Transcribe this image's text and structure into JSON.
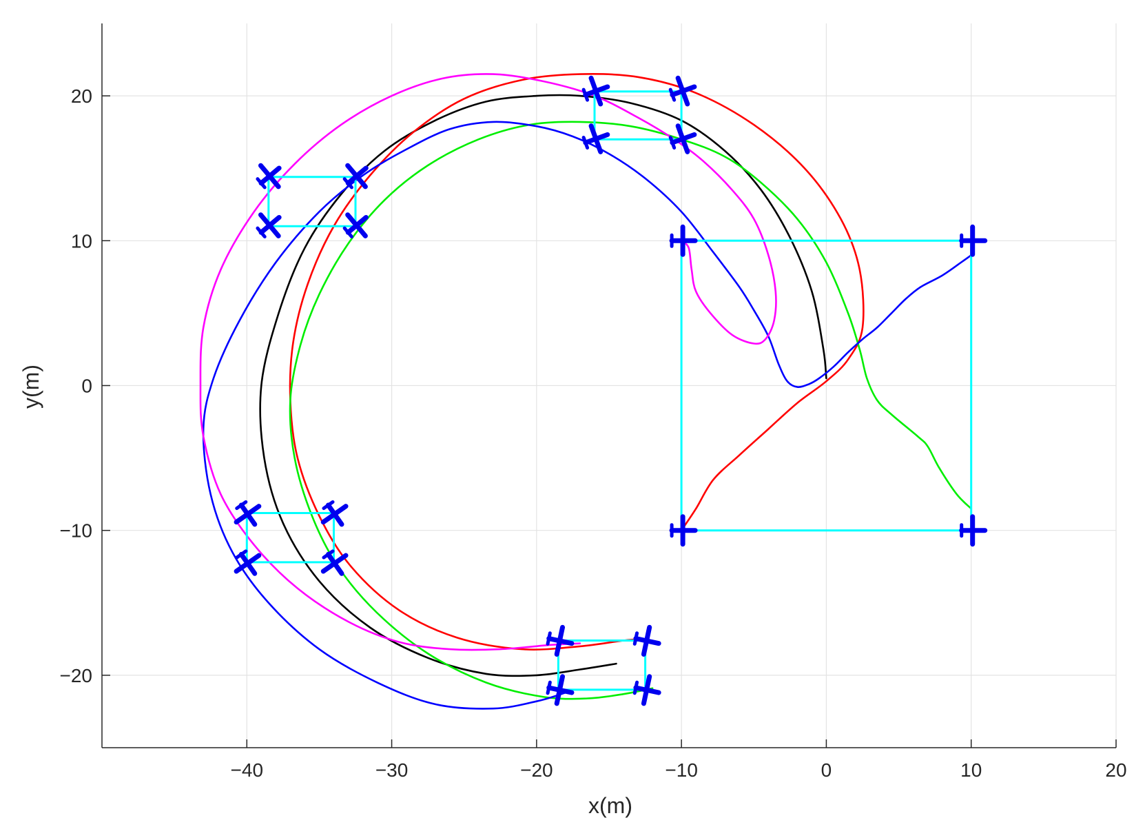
{
  "chart_data": {
    "type": "line",
    "title": "",
    "xlabel": "x(m)",
    "ylabel": "y(m)",
    "xlim": [
      -50,
      20
    ],
    "ylim": [
      -25,
      25
    ],
    "xticks": [
      -40,
      -30,
      -20,
      -10,
      0,
      10,
      20
    ],
    "yticks": [
      -20,
      -10,
      0,
      10,
      20
    ],
    "grid": true,
    "legend": "none",
    "colors": {
      "red": "#ff0000",
      "green": "#00ee00",
      "blue": "#0000ff",
      "magenta": "#ff00ff",
      "black": "#000000",
      "formation": "#00ffff",
      "aircraft": "#0000ee"
    },
    "series": [
      {
        "color": "black",
        "points": [
          [
            0,
            0.5
          ],
          [
            -0.2,
            2.5
          ],
          [
            -1,
            6.5
          ],
          [
            -2.5,
            10.2
          ],
          [
            -4.5,
            13.5
          ],
          [
            -7,
            16.2
          ],
          [
            -10,
            18.3
          ],
          [
            -13.5,
            19.5
          ],
          [
            -17,
            20
          ],
          [
            -20,
            20
          ],
          [
            -23.5,
            19.6
          ],
          [
            -27,
            18.3
          ],
          [
            -30.5,
            16.2
          ],
          [
            -33.5,
            13.2
          ],
          [
            -36,
            9.5
          ],
          [
            -37.8,
            5
          ],
          [
            -39,
            0
          ],
          [
            -38.8,
            -5
          ],
          [
            -37.5,
            -9.5
          ],
          [
            -35,
            -13.5
          ],
          [
            -31.5,
            -16.7
          ],
          [
            -27.5,
            -18.8
          ],
          [
            -23.5,
            -19.9
          ],
          [
            -20,
            -20
          ],
          [
            -17,
            -19.6
          ],
          [
            -14.5,
            -19.2
          ]
        ]
      },
      {
        "color": "red",
        "points": [
          [
            -10,
            -10
          ],
          [
            -9,
            -8.5
          ],
          [
            -7.8,
            -6.5
          ],
          [
            -6,
            -4.8
          ],
          [
            -4,
            -3
          ],
          [
            -2,
            -1.2
          ],
          [
            0,
            0.3
          ],
          [
            1.5,
            1.8
          ],
          [
            2.5,
            4
          ],
          [
            2.3,
            8
          ],
          [
            1,
            11.5
          ],
          [
            -1.5,
            15
          ],
          [
            -5,
            18
          ],
          [
            -9,
            20.2
          ],
          [
            -13,
            21.3
          ],
          [
            -17,
            21.5
          ],
          [
            -21,
            21.1
          ],
          [
            -25,
            19.8
          ],
          [
            -28.5,
            17.5
          ],
          [
            -31.5,
            14.5
          ],
          [
            -34,
            11
          ],
          [
            -35.8,
            7
          ],
          [
            -36.8,
            3
          ],
          [
            -37,
            -1
          ],
          [
            -36.5,
            -5
          ],
          [
            -35,
            -9
          ],
          [
            -32.8,
            -12.5
          ],
          [
            -29.5,
            -15.5
          ],
          [
            -25.5,
            -17.4
          ],
          [
            -21,
            -18.2
          ],
          [
            -17,
            -18
          ],
          [
            -14,
            -17.6
          ],
          [
            -12.5,
            -17.5
          ]
        ]
      },
      {
        "color": "green",
        "points": [
          [
            10,
            -8.5
          ],
          [
            9,
            -7.5
          ],
          [
            7.8,
            -5.7
          ],
          [
            7,
            -4.2
          ],
          [
            6.3,
            -3.5
          ],
          [
            4.5,
            -2
          ],
          [
            3.5,
            -1
          ],
          [
            2.8,
            0.5
          ],
          [
            2.3,
            2.5
          ],
          [
            1.5,
            5
          ],
          [
            0,
            8.5
          ],
          [
            -2,
            11.5
          ],
          [
            -4.5,
            14
          ],
          [
            -7,
            15.8
          ],
          [
            -10,
            17
          ],
          [
            -13.5,
            17.9
          ],
          [
            -17,
            18.2
          ],
          [
            -20.5,
            18
          ],
          [
            -24,
            17
          ],
          [
            -27.5,
            15.2
          ],
          [
            -30.5,
            12.8
          ],
          [
            -33,
            9.8
          ],
          [
            -35,
            6.3
          ],
          [
            -36.3,
            2.8
          ],
          [
            -37,
            -1
          ],
          [
            -36.7,
            -5
          ],
          [
            -35.5,
            -9
          ],
          [
            -33.7,
            -12.5
          ],
          [
            -31,
            -15.7
          ],
          [
            -27.5,
            -18.5
          ],
          [
            -23.5,
            -20.5
          ],
          [
            -19.5,
            -21.5
          ],
          [
            -16.5,
            -21.6
          ],
          [
            -14,
            -21.3
          ],
          [
            -12,
            -20.9
          ]
        ]
      },
      {
        "color": "blue",
        "points": [
          [
            10,
            9
          ],
          [
            9.3,
            8.5
          ],
          [
            8,
            7.6
          ],
          [
            6.5,
            6.8
          ],
          [
            5.5,
            6
          ],
          [
            4.5,
            5
          ],
          [
            3.5,
            4
          ],
          [
            2.5,
            3.2
          ],
          [
            1.5,
            2.3
          ],
          [
            0.5,
            1.3
          ],
          [
            -0.5,
            0.5
          ],
          [
            -1.2,
            0.1
          ],
          [
            -2,
            -0.1
          ],
          [
            -2.7,
            0.3
          ],
          [
            -3.3,
            1.5
          ],
          [
            -4,
            3.4
          ],
          [
            -5,
            5.2
          ],
          [
            -6,
            6.8
          ],
          [
            -7.8,
            9.2
          ],
          [
            -10,
            12
          ],
          [
            -12.5,
            14.3
          ],
          [
            -15,
            16
          ],
          [
            -17.5,
            17.2
          ],
          [
            -20,
            17.9
          ],
          [
            -23,
            18.2
          ],
          [
            -26,
            17.7
          ],
          [
            -29,
            16.3
          ],
          [
            -32,
            14.5
          ],
          [
            -35,
            12
          ],
          [
            -38,
            8.5
          ],
          [
            -40.5,
            4.5
          ],
          [
            -42.3,
            0.5
          ],
          [
            -43,
            -3
          ],
          [
            -42.5,
            -7.5
          ],
          [
            -41,
            -11.5
          ],
          [
            -38.5,
            -15
          ],
          [
            -35,
            -18.2
          ],
          [
            -31,
            -20.5
          ],
          [
            -27,
            -22
          ],
          [
            -23,
            -22.3
          ],
          [
            -20,
            -21.8
          ],
          [
            -18,
            -21.2
          ]
        ]
      },
      {
        "color": "magenta",
        "points": [
          [
            -10,
            10
          ],
          [
            -9.5,
            9.5
          ],
          [
            -9.3,
            8
          ],
          [
            -9,
            6.5
          ],
          [
            -8,
            5
          ],
          [
            -6.5,
            3.5
          ],
          [
            -5,
            2.9
          ],
          [
            -4.2,
            3.2
          ],
          [
            -3.6,
            4.5
          ],
          [
            -3.5,
            6.5
          ],
          [
            -4,
            9
          ],
          [
            -5,
            11.5
          ],
          [
            -6.5,
            13.5
          ],
          [
            -8.5,
            15.5
          ],
          [
            -10.5,
            17
          ],
          [
            -13,
            18.5
          ],
          [
            -16,
            20
          ],
          [
            -19.5,
            21
          ],
          [
            -23,
            21.5
          ],
          [
            -26.5,
            21.2
          ],
          [
            -30,
            20
          ],
          [
            -33.5,
            18
          ],
          [
            -36.7,
            15.3
          ],
          [
            -39.5,
            12
          ],
          [
            -41.8,
            8
          ],
          [
            -43,
            4
          ],
          [
            -43.2,
            0
          ],
          [
            -43,
            -3.5
          ],
          [
            -41.8,
            -7.5
          ],
          [
            -39.5,
            -11
          ],
          [
            -36.5,
            -14
          ],
          [
            -33,
            -16.3
          ],
          [
            -29.5,
            -17.7
          ],
          [
            -26,
            -18.2
          ],
          [
            -22.5,
            -18.2
          ],
          [
            -19,
            -17.9
          ],
          [
            -17,
            -17.8
          ]
        ]
      }
    ],
    "formations": [
      {
        "corners": [
          [
            -10,
            10
          ],
          [
            10,
            10
          ],
          [
            10,
            -10
          ],
          [
            -10,
            -10
          ]
        ],
        "heading_deg": 0
      },
      {
        "corners": [
          [
            -16,
            20.3
          ],
          [
            -10,
            20.3
          ],
          [
            -10,
            17
          ],
          [
            -16,
            17
          ]
        ],
        "heading_deg": 20
      },
      {
        "corners": [
          [
            -38.5,
            14.4
          ],
          [
            -32.5,
            14.4
          ],
          [
            -32.5,
            11
          ],
          [
            -38.5,
            11
          ]
        ],
        "heading_deg": 40
      },
      {
        "corners": [
          [
            -40,
            -8.8
          ],
          [
            -34,
            -8.8
          ],
          [
            -34,
            -12.2
          ],
          [
            -40,
            -12.2
          ]
        ],
        "heading_deg": -55
      },
      {
        "corners": [
          [
            -18.5,
            -17.6
          ],
          [
            -12.5,
            -17.6
          ],
          [
            -12.5,
            -21
          ],
          [
            -18.5,
            -21
          ]
        ],
        "heading_deg": -12
      }
    ]
  }
}
